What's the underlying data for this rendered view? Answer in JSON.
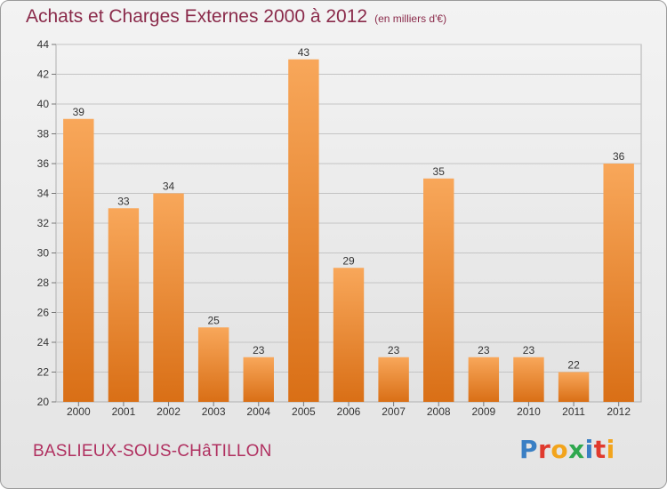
{
  "header": {
    "title": "Achats et Charges Externes 2000 à 2012",
    "unit": "(en milliers d'€)"
  },
  "footer": {
    "commune": "BASLIEUX-SOUS-CHâTILLON",
    "brand": [
      "P",
      "r",
      "o",
      "x",
      "i",
      "t",
      "i"
    ],
    "brand_colors": [
      "#3a7fc4",
      "#e03a2e",
      "#f2a41c",
      "#2fa84f",
      "#3a7fc4",
      "#e03a2e",
      "#f2a41c"
    ]
  },
  "colors": {
    "bar_top": "#f8a75a",
    "bar_bottom": "#d96f16",
    "title": "#8a2a4a",
    "commune": "#b03060"
  },
  "chart_data": {
    "type": "bar",
    "categories": [
      "2000",
      "2001",
      "2002",
      "2003",
      "2004",
      "2005",
      "2006",
      "2007",
      "2008",
      "2009",
      "2010",
      "2011",
      "2012"
    ],
    "values": [
      39,
      33,
      34,
      25,
      23,
      43,
      29,
      23,
      35,
      23,
      23,
      22,
      36
    ],
    "title": "Achats et Charges Externes 2000 à 2012",
    "xlabel": "",
    "ylabel": "",
    "ylim": [
      20,
      44
    ],
    "yticks": [
      20,
      22,
      24,
      26,
      28,
      30,
      32,
      34,
      36,
      38,
      40,
      42,
      44
    ],
    "grid": true,
    "legend": "none"
  }
}
